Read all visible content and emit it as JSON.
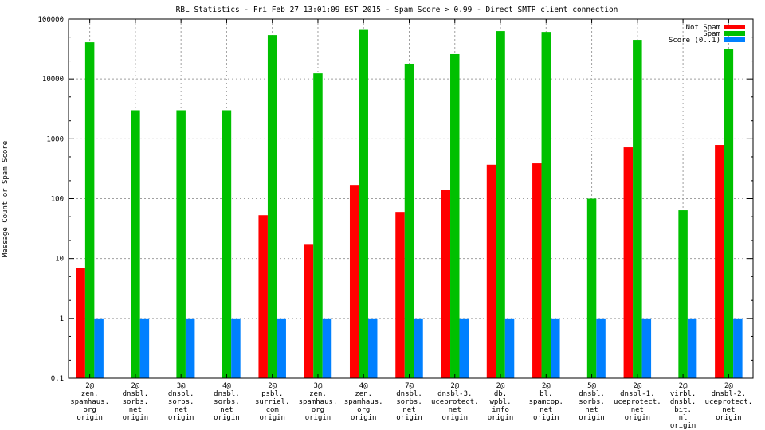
{
  "chart_data": {
    "type": "bar",
    "title": "RBL Statistics - Fri Feb 27 13:01:09 EST 2015 - Spam Score > 0.99 - Direct SMTP client connection",
    "xlabel": "",
    "ylabel": "Message Count or Spam Score",
    "yscale": "log",
    "ylim": [
      0.1,
      100000
    ],
    "yticks": [
      "0.1",
      "1",
      "10",
      "100",
      "1000",
      "10000",
      "100000"
    ],
    "yticks_values": [
      0.1,
      1,
      10,
      100,
      1000,
      10000,
      100000
    ],
    "grid": true,
    "legend_position": "top-right",
    "categories": [
      [
        "2@",
        "zen.",
        "spamhaus.",
        "org",
        "origin"
      ],
      [
        "2@",
        "dnsbl.",
        "sorbs.",
        "net",
        "origin"
      ],
      [
        "3@",
        "dnsbl.",
        "sorbs.",
        "net",
        "origin"
      ],
      [
        "4@",
        "dnsbl.",
        "sorbs.",
        "net",
        "origin"
      ],
      [
        "2@",
        "psbl.",
        "surriel.",
        "com",
        "origin"
      ],
      [
        "3@",
        "zen.",
        "spamhaus.",
        "org",
        "origin"
      ],
      [
        "4@",
        "zen.",
        "spamhaus.",
        "org",
        "origin"
      ],
      [
        "7@",
        "dnsbl.",
        "sorbs.",
        "net",
        "origin"
      ],
      [
        "2@",
        "dnsbl-3.",
        "uceprotect.",
        "net",
        "origin"
      ],
      [
        "2@",
        "db.",
        "wpbl.",
        "info",
        "origin"
      ],
      [
        "2@",
        "bl.",
        "spamcop.",
        "net",
        "origin"
      ],
      [
        "5@",
        "dnsbl.",
        "sorbs.",
        "net",
        "origin"
      ],
      [
        "2@",
        "dnsbl-1.",
        "uceprotect.",
        "net",
        "origin"
      ],
      [
        "2@",
        "virbl.",
        "dnsbl.",
        "bit.",
        "nl",
        "origin"
      ],
      [
        "2@",
        "dnsbl-2.",
        "uceprotect.",
        "net",
        "origin"
      ]
    ],
    "series": [
      {
        "name": "Not Spam",
        "color": "#ff0000",
        "values": [
          7,
          null,
          null,
          null,
          53,
          17,
          170,
          60,
          140,
          370,
          390,
          null,
          720,
          null,
          790
        ]
      },
      {
        "name": "Spam",
        "color": "#00c000",
        "values": [
          41000,
          3000,
          3000,
          3000,
          54000,
          12400,
          66000,
          18000,
          26000,
          63000,
          61000,
          100,
          45000,
          64,
          32000
        ]
      },
      {
        "name": "Score (0..1)",
        "color": "#0080ff",
        "values": [
          1,
          1,
          1,
          1,
          1,
          1,
          1,
          1,
          1,
          1,
          1,
          1,
          1,
          1,
          1
        ]
      }
    ]
  }
}
